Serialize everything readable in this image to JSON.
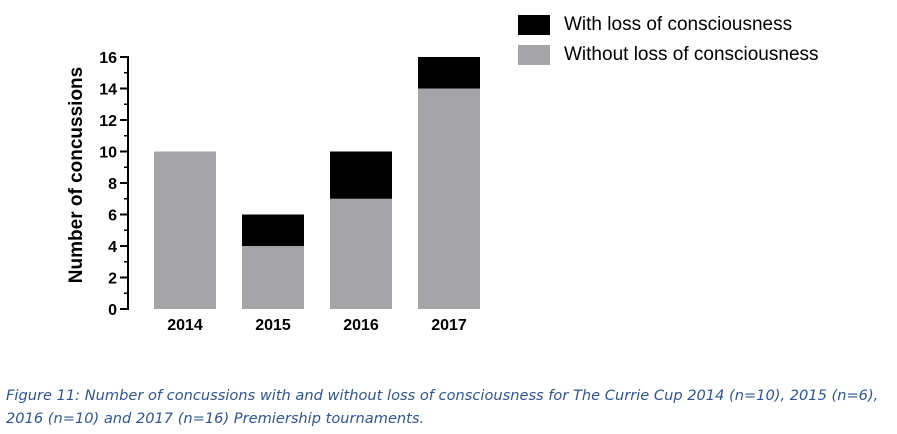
{
  "chart_data": {
    "type": "bar",
    "stacked": true,
    "categories": [
      "2014",
      "2015",
      "2016",
      "2017"
    ],
    "series": [
      {
        "name": "Without loss of consciousness",
        "values": [
          10,
          4,
          7,
          14
        ],
        "color": "#a5a5a8"
      },
      {
        "name": "With loss of consciousness",
        "values": [
          0,
          2,
          3,
          2
        ],
        "color": "#000000"
      }
    ],
    "ylabel": "Number of concussions",
    "xlabel": "",
    "ylim": [
      0,
      16
    ],
    "yticks": [
      0,
      2,
      4,
      6,
      8,
      10,
      12,
      14,
      16
    ],
    "legend_position": "top-right",
    "grid": false
  },
  "legend": {
    "items": [
      {
        "label": "With loss of consciousness",
        "color": "#000000"
      },
      {
        "label": "Without loss of consciousness",
        "color": "#a5a5a8"
      }
    ]
  },
  "caption": {
    "text": "Figure 11: Number of concussions with and without loss of consciousness for The Currie Cup 2014 (n=10), 2015 (n=6), 2016 (n=10) and 2017 (n=16) Premiership tournaments."
  }
}
